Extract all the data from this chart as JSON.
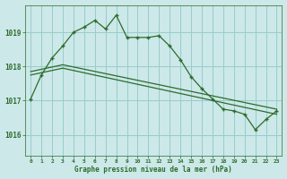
{
  "title": "Graphe pression niveau de la mer (hPa)",
  "bg_color": "#cce8e8",
  "grid_color": "#99cccc",
  "line_color": "#2d6b2d",
  "xlim": [
    -0.5,
    23.5
  ],
  "ylim": [
    1015.4,
    1019.8
  ],
  "yticks": [
    1016,
    1017,
    1018,
    1019
  ],
  "xtick_labels": [
    "0",
    "1",
    "2",
    "3",
    "4",
    "5",
    "6",
    "7",
    "8",
    "9",
    "10",
    "11",
    "12",
    "13",
    "14",
    "15",
    "16",
    "17",
    "18",
    "19",
    "20",
    "21",
    "22",
    "23"
  ],
  "series1_x": [
    0,
    1,
    2,
    3,
    4,
    5,
    6,
    7,
    8,
    9,
    10,
    11,
    12,
    13,
    14,
    15,
    16,
    17,
    18,
    19,
    20,
    21,
    22,
    23
  ],
  "series1_y": [
    1017.05,
    1017.75,
    1018.25,
    1018.6,
    1019.0,
    1019.15,
    1019.35,
    1019.1,
    1019.5,
    1018.85,
    1018.85,
    1018.85,
    1018.9,
    1018.6,
    1018.2,
    1017.7,
    1017.35,
    1017.05,
    1016.75,
    1016.7,
    1016.6,
    1016.15,
    1016.45,
    1016.7
  ],
  "series2_x": [
    0,
    3,
    23
  ],
  "series2_y": [
    1017.85,
    1018.05,
    1016.75
  ],
  "series3_x": [
    0,
    3,
    23
  ],
  "series3_y": [
    1017.75,
    1017.95,
    1016.6
  ],
  "figsize": [
    3.2,
    2.0
  ],
  "dpi": 100
}
